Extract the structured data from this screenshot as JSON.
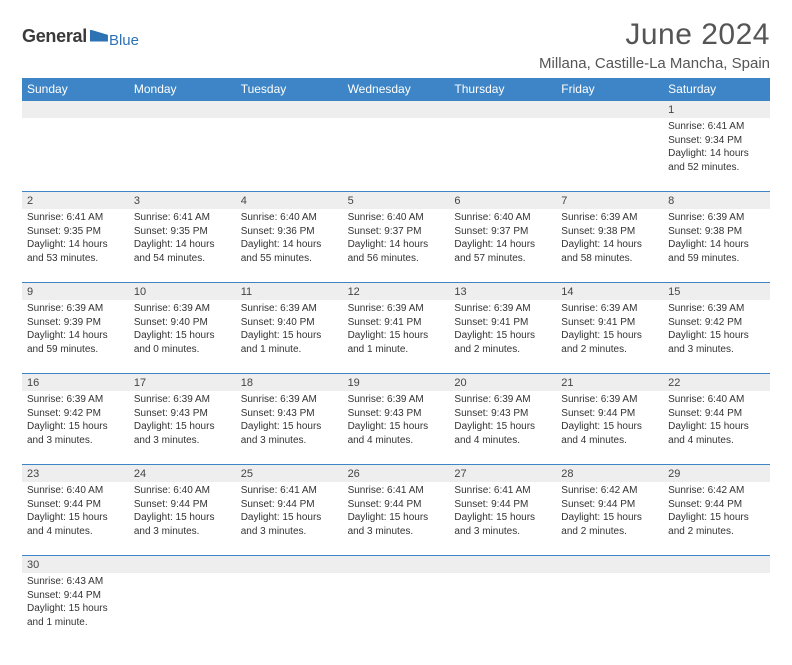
{
  "logo": {
    "text1": "General",
    "text2": "Blue"
  },
  "title": "June 2024",
  "location": "Millana, Castille-La Mancha, Spain",
  "colors": {
    "header_bg": "#3d85c6",
    "header_text": "#ffffff",
    "daynum_bg": "#eeeeee",
    "border": "#3d85c6",
    "text": "#333333",
    "logo_blue": "#2d72b5",
    "logo_gray": "#3a3a3a"
  },
  "weekdays": [
    "Sunday",
    "Monday",
    "Tuesday",
    "Wednesday",
    "Thursday",
    "Friday",
    "Saturday"
  ],
  "weeks": [
    [
      {
        "n": "",
        "sr": "",
        "ss": "",
        "dl": ""
      },
      {
        "n": "",
        "sr": "",
        "ss": "",
        "dl": ""
      },
      {
        "n": "",
        "sr": "",
        "ss": "",
        "dl": ""
      },
      {
        "n": "",
        "sr": "",
        "ss": "",
        "dl": ""
      },
      {
        "n": "",
        "sr": "",
        "ss": "",
        "dl": ""
      },
      {
        "n": "",
        "sr": "",
        "ss": "",
        "dl": ""
      },
      {
        "n": "1",
        "sr": "Sunrise: 6:41 AM",
        "ss": "Sunset: 9:34 PM",
        "dl": "Daylight: 14 hours and 52 minutes."
      }
    ],
    [
      {
        "n": "2",
        "sr": "Sunrise: 6:41 AM",
        "ss": "Sunset: 9:35 PM",
        "dl": "Daylight: 14 hours and 53 minutes."
      },
      {
        "n": "3",
        "sr": "Sunrise: 6:41 AM",
        "ss": "Sunset: 9:35 PM",
        "dl": "Daylight: 14 hours and 54 minutes."
      },
      {
        "n": "4",
        "sr": "Sunrise: 6:40 AM",
        "ss": "Sunset: 9:36 PM",
        "dl": "Daylight: 14 hours and 55 minutes."
      },
      {
        "n": "5",
        "sr": "Sunrise: 6:40 AM",
        "ss": "Sunset: 9:37 PM",
        "dl": "Daylight: 14 hours and 56 minutes."
      },
      {
        "n": "6",
        "sr": "Sunrise: 6:40 AM",
        "ss": "Sunset: 9:37 PM",
        "dl": "Daylight: 14 hours and 57 minutes."
      },
      {
        "n": "7",
        "sr": "Sunrise: 6:39 AM",
        "ss": "Sunset: 9:38 PM",
        "dl": "Daylight: 14 hours and 58 minutes."
      },
      {
        "n": "8",
        "sr": "Sunrise: 6:39 AM",
        "ss": "Sunset: 9:38 PM",
        "dl": "Daylight: 14 hours and 59 minutes."
      }
    ],
    [
      {
        "n": "9",
        "sr": "Sunrise: 6:39 AM",
        "ss": "Sunset: 9:39 PM",
        "dl": "Daylight: 14 hours and 59 minutes."
      },
      {
        "n": "10",
        "sr": "Sunrise: 6:39 AM",
        "ss": "Sunset: 9:40 PM",
        "dl": "Daylight: 15 hours and 0 minutes."
      },
      {
        "n": "11",
        "sr": "Sunrise: 6:39 AM",
        "ss": "Sunset: 9:40 PM",
        "dl": "Daylight: 15 hours and 1 minute."
      },
      {
        "n": "12",
        "sr": "Sunrise: 6:39 AM",
        "ss": "Sunset: 9:41 PM",
        "dl": "Daylight: 15 hours and 1 minute."
      },
      {
        "n": "13",
        "sr": "Sunrise: 6:39 AM",
        "ss": "Sunset: 9:41 PM",
        "dl": "Daylight: 15 hours and 2 minutes."
      },
      {
        "n": "14",
        "sr": "Sunrise: 6:39 AM",
        "ss": "Sunset: 9:41 PM",
        "dl": "Daylight: 15 hours and 2 minutes."
      },
      {
        "n": "15",
        "sr": "Sunrise: 6:39 AM",
        "ss": "Sunset: 9:42 PM",
        "dl": "Daylight: 15 hours and 3 minutes."
      }
    ],
    [
      {
        "n": "16",
        "sr": "Sunrise: 6:39 AM",
        "ss": "Sunset: 9:42 PM",
        "dl": "Daylight: 15 hours and 3 minutes."
      },
      {
        "n": "17",
        "sr": "Sunrise: 6:39 AM",
        "ss": "Sunset: 9:43 PM",
        "dl": "Daylight: 15 hours and 3 minutes."
      },
      {
        "n": "18",
        "sr": "Sunrise: 6:39 AM",
        "ss": "Sunset: 9:43 PM",
        "dl": "Daylight: 15 hours and 3 minutes."
      },
      {
        "n": "19",
        "sr": "Sunrise: 6:39 AM",
        "ss": "Sunset: 9:43 PM",
        "dl": "Daylight: 15 hours and 4 minutes."
      },
      {
        "n": "20",
        "sr": "Sunrise: 6:39 AM",
        "ss": "Sunset: 9:43 PM",
        "dl": "Daylight: 15 hours and 4 minutes."
      },
      {
        "n": "21",
        "sr": "Sunrise: 6:39 AM",
        "ss": "Sunset: 9:44 PM",
        "dl": "Daylight: 15 hours and 4 minutes."
      },
      {
        "n": "22",
        "sr": "Sunrise: 6:40 AM",
        "ss": "Sunset: 9:44 PM",
        "dl": "Daylight: 15 hours and 4 minutes."
      }
    ],
    [
      {
        "n": "23",
        "sr": "Sunrise: 6:40 AM",
        "ss": "Sunset: 9:44 PM",
        "dl": "Daylight: 15 hours and 4 minutes."
      },
      {
        "n": "24",
        "sr": "Sunrise: 6:40 AM",
        "ss": "Sunset: 9:44 PM",
        "dl": "Daylight: 15 hours and 3 minutes."
      },
      {
        "n": "25",
        "sr": "Sunrise: 6:41 AM",
        "ss": "Sunset: 9:44 PM",
        "dl": "Daylight: 15 hours and 3 minutes."
      },
      {
        "n": "26",
        "sr": "Sunrise: 6:41 AM",
        "ss": "Sunset: 9:44 PM",
        "dl": "Daylight: 15 hours and 3 minutes."
      },
      {
        "n": "27",
        "sr": "Sunrise: 6:41 AM",
        "ss": "Sunset: 9:44 PM",
        "dl": "Daylight: 15 hours and 3 minutes."
      },
      {
        "n": "28",
        "sr": "Sunrise: 6:42 AM",
        "ss": "Sunset: 9:44 PM",
        "dl": "Daylight: 15 hours and 2 minutes."
      },
      {
        "n": "29",
        "sr": "Sunrise: 6:42 AM",
        "ss": "Sunset: 9:44 PM",
        "dl": "Daylight: 15 hours and 2 minutes."
      }
    ],
    [
      {
        "n": "30",
        "sr": "Sunrise: 6:43 AM",
        "ss": "Sunset: 9:44 PM",
        "dl": "Daylight: 15 hours and 1 minute."
      },
      {
        "n": "",
        "sr": "",
        "ss": "",
        "dl": ""
      },
      {
        "n": "",
        "sr": "",
        "ss": "",
        "dl": ""
      },
      {
        "n": "",
        "sr": "",
        "ss": "",
        "dl": ""
      },
      {
        "n": "",
        "sr": "",
        "ss": "",
        "dl": ""
      },
      {
        "n": "",
        "sr": "",
        "ss": "",
        "dl": ""
      },
      {
        "n": "",
        "sr": "",
        "ss": "",
        "dl": ""
      }
    ]
  ]
}
